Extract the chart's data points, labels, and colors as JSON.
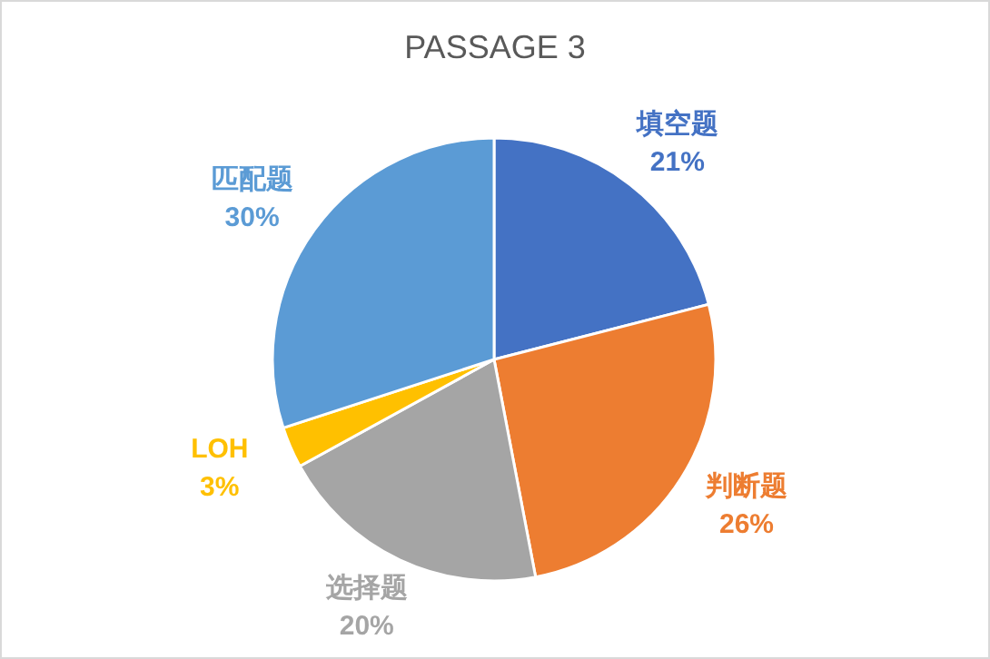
{
  "chart_data": {
    "type": "pie",
    "title": "PASSAGE 3",
    "categories": [
      "填空题",
      "判断题",
      "选择题",
      "LOH",
      "匹配题"
    ],
    "values": [
      21,
      26,
      20,
      3,
      30
    ],
    "colors": [
      "#4472c4",
      "#ed7d31",
      "#a5a5a5",
      "#ffc000",
      "#5b9bd5"
    ],
    "value_labels": [
      "21%",
      "26%",
      "20%",
      "3%",
      "30%"
    ],
    "legend": false
  }
}
